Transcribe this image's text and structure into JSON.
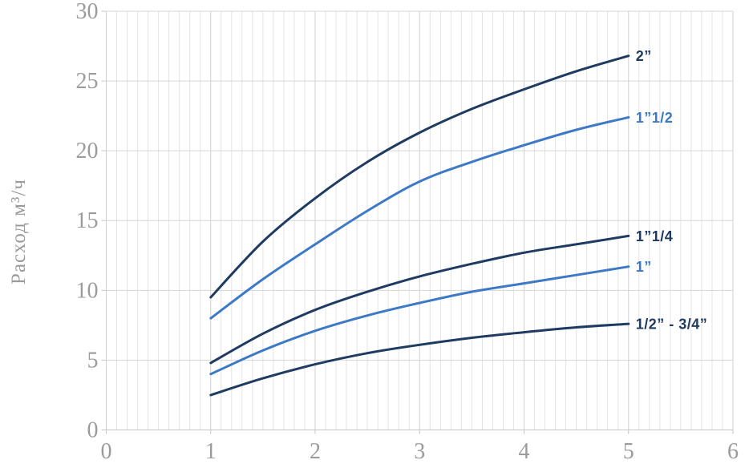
{
  "y_axis_title": "Расход м³/ч",
  "colors": {
    "dark": "#1f3b62",
    "light": "#3d79c5",
    "grid_minor": "#e3e3e3",
    "grid_major": "#d0d0d0",
    "grid_horizontal": "#d6d6d6",
    "axis_line": "#c6c6c6",
    "tick_text": "#9b9b9b"
  },
  "chart_data": {
    "type": "line",
    "title": "",
    "xlabel": "",
    "ylabel": "Расход м³/ч",
    "xlim": [
      0,
      6
    ],
    "ylim": [
      0,
      30
    ],
    "x_ticks": [
      0,
      1,
      2,
      3,
      4,
      5,
      6
    ],
    "y_ticks": [
      0,
      5,
      10,
      15,
      20,
      25,
      30
    ],
    "x_minor_step": 0.1,
    "grid": "vertical minor gridlines every 0.1; horizontal gridlines every 5",
    "legend_position": "labels at right end of each curve",
    "x": [
      1,
      1.5,
      2,
      2.5,
      3,
      3.5,
      4,
      4.5,
      5
    ],
    "series": [
      {
        "name": "2”",
        "color": "dark",
        "values": [
          9.5,
          13.5,
          16.6,
          19.2,
          21.3,
          23.0,
          24.4,
          25.7,
          26.8
        ]
      },
      {
        "name": "1”1/2",
        "color": "light",
        "values": [
          8.0,
          10.8,
          13.3,
          15.7,
          17.8,
          19.2,
          20.4,
          21.5,
          22.4
        ]
      },
      {
        "name": "1”1/4",
        "color": "dark",
        "values": [
          4.8,
          6.9,
          8.6,
          9.9,
          11.0,
          11.9,
          12.7,
          13.3,
          13.9
        ]
      },
      {
        "name": "1”",
        "color": "light",
        "values": [
          4.0,
          5.7,
          7.1,
          8.2,
          9.1,
          9.9,
          10.5,
          11.1,
          11.7
        ]
      },
      {
        "name": "1/2” - 3/4”",
        "color": "dark",
        "values": [
          2.5,
          3.7,
          4.7,
          5.5,
          6.1,
          6.6,
          7.0,
          7.35,
          7.6
        ]
      }
    ]
  }
}
